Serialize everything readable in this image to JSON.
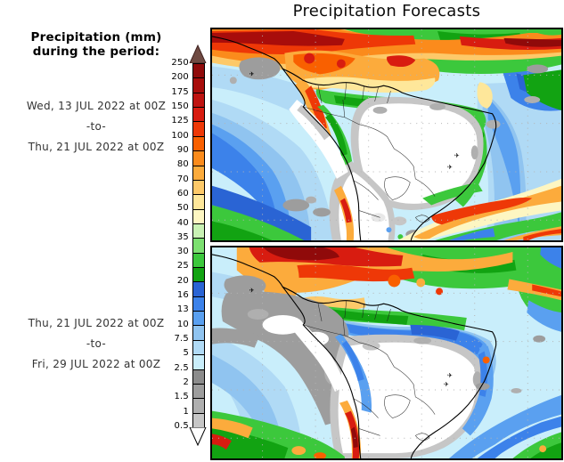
{
  "title": "Precipitation Forecasts",
  "sidebar": {
    "heading_line1": "Precipitation (mm)",
    "heading_line2": "during the period:",
    "period1": {
      "start": "Wed, 13 JUL 2022 at 00Z",
      "separator": "-to-",
      "end": "Thu, 21 JUL 2022 at 00Z"
    },
    "period2": {
      "start": "Thu, 21 JUL 2022 at 00Z",
      "separator": "-to-",
      "end": "Fri, 29 JUL 2022 at 00Z"
    }
  },
  "colorbar": {
    "tick_labels": [
      "250",
      "200",
      "175",
      "150",
      "125",
      "100",
      "90",
      "80",
      "70",
      "60",
      "50",
      "40",
      "35",
      "30",
      "25",
      "20",
      "16",
      "13",
      "10",
      "7.5",
      "5",
      "2.5",
      "2",
      "1.5",
      "1",
      "0.5"
    ],
    "segment_colors": [
      "#900a0a",
      "#a80d0b",
      "#bf1310",
      "#d81c10",
      "#ee3807",
      "#f96000",
      "#fb8b1c",
      "#fcab3c",
      "#fdc969",
      "#fee79a",
      "#fdf6c2",
      "#c9f2b4",
      "#7ce070",
      "#3cc83c",
      "#12a312",
      "#2a64d4",
      "#3c82ea",
      "#5aa0f0",
      "#90c4f0",
      "#b0daf5",
      "#c9eefb",
      "#8c8c8c",
      "#9d9d9d",
      "#afafaf",
      "#c6c6c6"
    ],
    "over_arrow_color": "#6f4a42",
    "under_arrow_color": "#ffffff"
  }
}
